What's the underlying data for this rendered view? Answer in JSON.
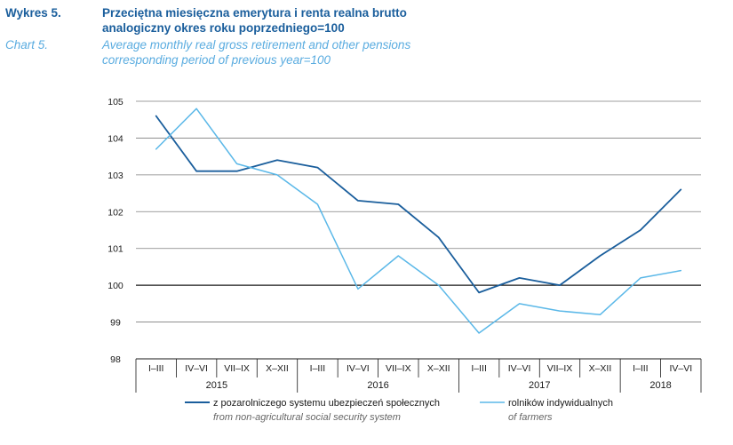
{
  "header": {
    "pl_label": "Wykres 5.",
    "pl_title_line1": "Przeciętna miesięczna emerytura i renta realna brutto",
    "pl_title_line2": "analogiczny okres roku poprzedniego=100",
    "en_label": "Chart 5.",
    "en_title_line1": "Average monthly real gross retirement and other pensions",
    "en_title_line2": "corresponding period of previous year=100"
  },
  "colors": {
    "series_nonagri": "#1a5e9c",
    "series_farmers": "#5bb8e8",
    "grid": "#7f7f7f",
    "baseline": "#1a1a1a"
  },
  "chart_data": {
    "type": "line",
    "title": "Przeciętna miesięczna emerytura i renta realna brutto — analogiczny okres roku poprzedniego=100",
    "xlabel": "",
    "ylabel": "",
    "ylim": [
      98,
      105
    ],
    "yticks": [
      98,
      99,
      100,
      101,
      102,
      103,
      104,
      105
    ],
    "reference_line": 100,
    "grid": true,
    "categories": [
      "I–III",
      "IV–VI",
      "VII–IX",
      "X–XII",
      "I–III",
      "IV–VI",
      "VII–IX",
      "X–XII",
      "I–III",
      "IV–VI",
      "VII–IX",
      "X–XII",
      "I–III",
      "IV–VI"
    ],
    "years": [
      {
        "label": "2015",
        "span": 4
      },
      {
        "label": "2016",
        "span": 4
      },
      {
        "label": "2017",
        "span": 4
      },
      {
        "label": "2018",
        "span": 2
      }
    ],
    "series": [
      {
        "name": "z pozarolniczego systemu ubezpieczeń społecznych",
        "name_en": "from non-agricultural social security system",
        "color_key": "series_nonagri",
        "values": [
          104.6,
          103.1,
          103.1,
          103.4,
          103.2,
          102.3,
          102.2,
          101.3,
          99.8,
          100.2,
          100.0,
          100.8,
          101.5,
          102.6
        ]
      },
      {
        "name": "rolników indywidualnych",
        "name_en": "of farmers",
        "color_key": "series_farmers",
        "values": [
          103.7,
          104.8,
          103.3,
          103.0,
          102.2,
          99.9,
          100.8,
          100.0,
          98.7,
          99.5,
          99.3,
          99.2,
          100.2,
          100.4
        ]
      }
    ],
    "legend_position": "bottom"
  }
}
